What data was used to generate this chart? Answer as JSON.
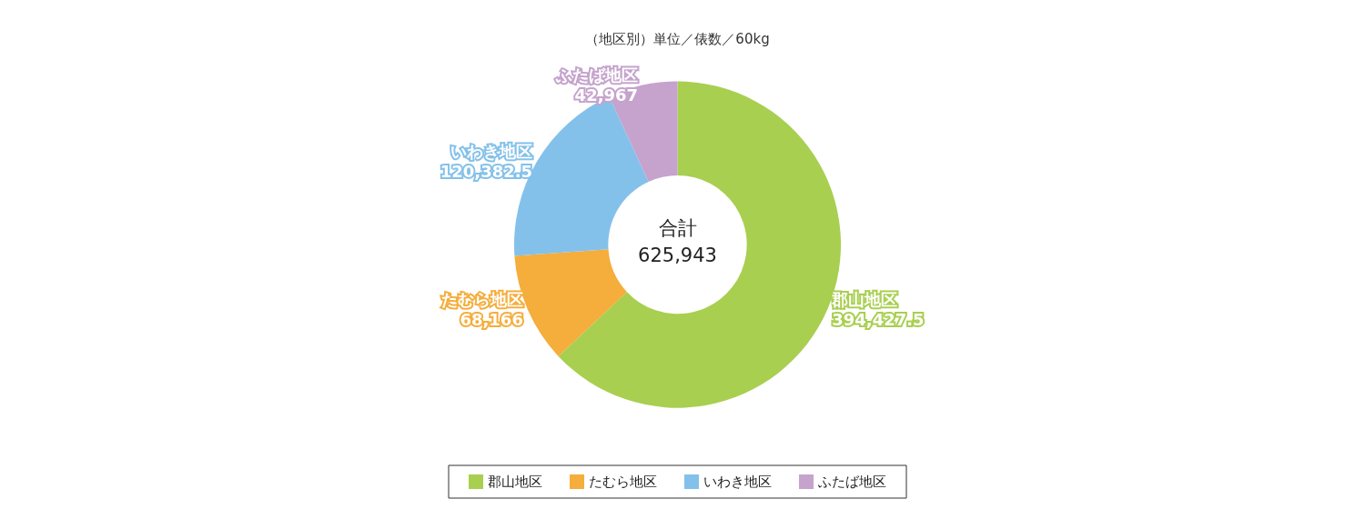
{
  "chart_data": {
    "type": "donut",
    "title": "（地区別）単位／俵数／60kg",
    "categories": [
      "郡山地区",
      "たむら地区",
      "いわき地区",
      "ふたば地区"
    ],
    "values": [
      394427.5,
      68166,
      120382.5,
      42967
    ],
    "value_labels": [
      "394,427.5",
      "68,166",
      "120,382.5",
      "42,967"
    ],
    "colors": [
      "#a8cf50",
      "#f5ad3b",
      "#84c1ea",
      "#c5a3cd"
    ],
    "annotations": [
      "合計\n625,943"
    ],
    "legend": "bottom"
  }
}
